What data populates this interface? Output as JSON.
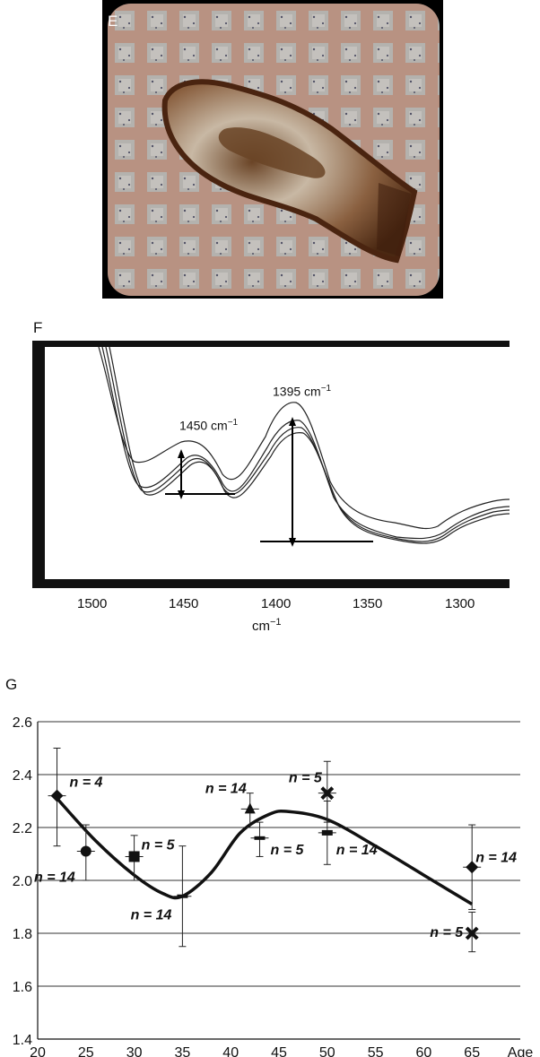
{
  "panels": {
    "e_label": "E",
    "f_label": "F",
    "g_label": "G"
  },
  "spectrum": {
    "peak1_value": "1450 cm",
    "peak2_value": "1395 cm",
    "unit_sup": "−1",
    "x_ticks": [
      "1500",
      "1450",
      "1400",
      "1350",
      "1300"
    ],
    "xlabel": "cm",
    "xlabel_sup": "−1"
  },
  "chart_data": {
    "type": "scatter",
    "title": "",
    "xlabel": "Age",
    "ylabel": "",
    "xlim": [
      20,
      70
    ],
    "ylim": [
      1.4,
      2.6
    ],
    "x_ticks": [
      20,
      25,
      30,
      35,
      40,
      45,
      50,
      55,
      60,
      65
    ],
    "y_ticks": [
      1.4,
      1.6,
      1.8,
      2.0,
      2.2,
      2.4,
      2.6
    ],
    "y_tick_labels": [
      "1.4",
      "1.6",
      "1.8",
      "2.0",
      "2.2",
      "2.4",
      "2.6"
    ],
    "grid": true,
    "points": [
      {
        "x": 22,
        "y": 2.32,
        "err_low": 2.13,
        "err_high": 2.5,
        "marker": "diamond",
        "label": "n = 4"
      },
      {
        "x": 25,
        "y": 2.11,
        "err_low": 2.0,
        "err_high": 2.21,
        "marker": "circle",
        "label": "n = 14"
      },
      {
        "x": 30,
        "y": 2.09,
        "err_low": 2.0,
        "err_high": 2.17,
        "marker": "square",
        "label": "n = 5"
      },
      {
        "x": 35,
        "y": 1.94,
        "err_low": 1.75,
        "err_high": 2.13,
        "marker": "minus",
        "label": "n = 14"
      },
      {
        "x": 42,
        "y": 2.27,
        "err_low": 2.2,
        "err_high": 2.33,
        "marker": "triangle",
        "label": "n = 14"
      },
      {
        "x": 43,
        "y": 2.16,
        "err_low": 2.09,
        "err_high": 2.22,
        "marker": "minus",
        "label": "n = 5"
      },
      {
        "x": 50,
        "y": 2.33,
        "err_low": 2.22,
        "err_high": 2.45,
        "marker": "x",
        "label": "n = 5"
      },
      {
        "x": 50,
        "y": 2.18,
        "err_low": 2.06,
        "err_high": 2.3,
        "marker": "bar",
        "label": "n = 14"
      },
      {
        "x": 65,
        "y": 2.05,
        "err_low": 1.89,
        "err_high": 2.21,
        "marker": "diamond",
        "label": "n = 14"
      },
      {
        "x": 65,
        "y": 1.8,
        "err_low": 1.73,
        "err_high": 1.88,
        "marker": "x",
        "label": "n = 5"
      }
    ],
    "trend": {
      "x": [
        22,
        26,
        30,
        33,
        35,
        38,
        41,
        44,
        46,
        50,
        55,
        60,
        65
      ],
      "y": [
        2.31,
        2.15,
        2.02,
        1.95,
        1.94,
        2.03,
        2.18,
        2.25,
        2.26,
        2.23,
        2.13,
        2.02,
        1.91
      ]
    }
  }
}
